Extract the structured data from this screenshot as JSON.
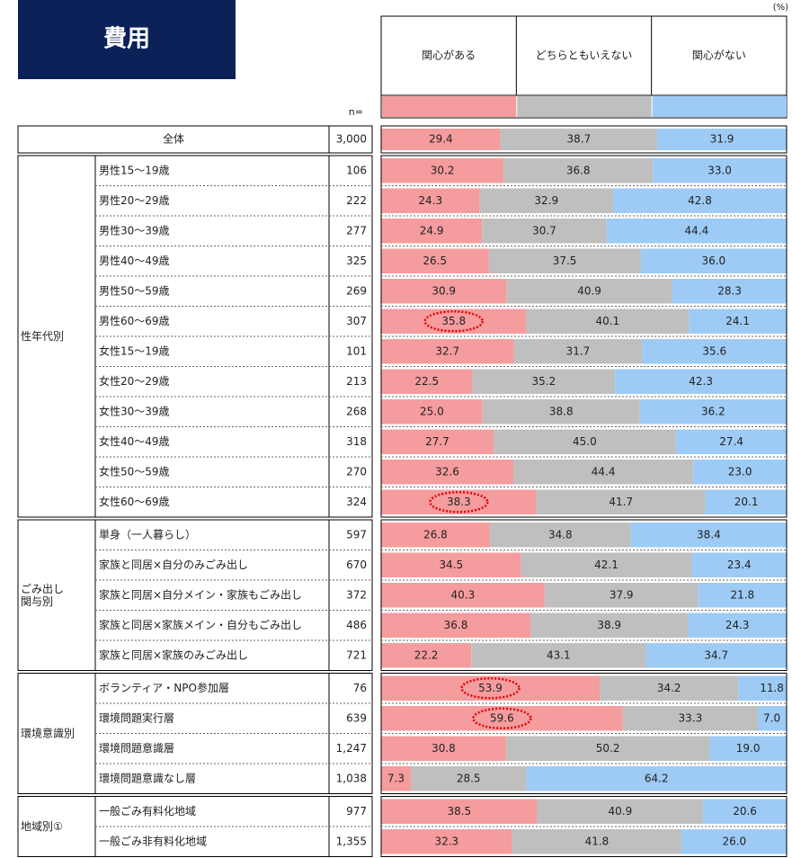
{
  "chart_data": {
    "type": "stacked_bar",
    "title": "費用",
    "unit": "(%)",
    "n_label": "n=",
    "xlim": [
      0,
      100
    ],
    "groups": [
      {
        "label": null,
        "categories": [
          "全体"
        ]
      },
      {
        "label": "性年代別",
        "categories": [
          "男性15～19歳",
          "男性20～29歳",
          "男性30～39歳",
          "男性40～49歳",
          "男性50～59歳",
          "男性60～69歳",
          "女性15～19歳",
          "女性20～29歳",
          "女性30～39歳",
          "女性40～49歳",
          "女性50～59歳",
          "女性60～69歳"
        ]
      },
      {
        "label": "ごみ出し\n関与別",
        "categories": [
          "単身（一人暮らし）",
          "家族と同居×自分のみごみ出し",
          "家族と同居×自分メイン・家族もごみ出し",
          "家族と同居×家族メイン・自分もごみ出し",
          "家族と同居×家族のみごみ出し"
        ]
      },
      {
        "label": "環境意識別",
        "categories": [
          "ボランティア・NPO参加層",
          "環境問題実行層",
          "環境問題意識層",
          "環境問題意識なし層"
        ]
      },
      {
        "label": "地域別①",
        "categories": [
          "一般ごみ有料化地域",
          "一般ごみ非有料化地域"
        ]
      }
    ],
    "n": [
      "3,000",
      "106",
      "222",
      "277",
      "325",
      "269",
      "307",
      "101",
      "213",
      "268",
      "318",
      "270",
      "324",
      "597",
      "670",
      "372",
      "486",
      "721",
      "76",
      "639",
      "1,247",
      "1,038",
      "977",
      "1,355"
    ],
    "series": [
      {
        "name": "関心がある",
        "color": "#f59c9e",
        "values": [
          29.4,
          30.2,
          24.3,
          24.9,
          26.5,
          30.9,
          35.8,
          32.7,
          22.5,
          25.0,
          27.7,
          32.6,
          38.3,
          26.8,
          34.5,
          40.3,
          36.8,
          22.2,
          53.9,
          59.6,
          30.8,
          7.3,
          38.5,
          32.3
        ],
        "value_labels": [
          "29.4",
          "30.2",
          "24.3",
          "24.9",
          "26.5",
          "30.9",
          "35.8",
          "32.7",
          "22.5",
          "25.0",
          "27.7",
          "32.6",
          "38.3",
          "26.8",
          "34.5",
          "40.3",
          "36.8",
          "22.2",
          "53.9",
          "59.6",
          "30.8",
          "7.3",
          "38.5",
          "32.3"
        ],
        "highlight": [
          6,
          12,
          18,
          19
        ]
      },
      {
        "name": "どちらともいえない",
        "color": "#bfbfbf",
        "values": [
          38.7,
          36.8,
          32.9,
          30.7,
          37.5,
          40.9,
          40.1,
          31.7,
          35.2,
          38.8,
          45.0,
          44.4,
          41.7,
          34.8,
          42.1,
          37.9,
          38.9,
          43.1,
          34.2,
          33.3,
          50.2,
          28.5,
          40.9,
          41.8
        ],
        "value_labels": [
          "38.7",
          "36.8",
          "32.9",
          "30.7",
          "37.5",
          "40.9",
          "40.1",
          "31.7",
          "35.2",
          "38.8",
          "45.0",
          "44.4",
          "41.7",
          "34.8",
          "42.1",
          "37.9",
          "38.9",
          "43.1",
          "34.2",
          "33.3",
          "50.2",
          "28.5",
          "40.9",
          "41.8"
        ]
      },
      {
        "name": "関心がない",
        "color": "#9dcbf5",
        "values": [
          31.9,
          33.0,
          42.8,
          44.4,
          36.0,
          28.3,
          24.1,
          35.6,
          42.3,
          36.2,
          27.4,
          23.0,
          20.1,
          38.4,
          23.4,
          21.8,
          24.3,
          34.7,
          11.8,
          7.0,
          19.0,
          64.2,
          20.6,
          26.0
        ],
        "value_labels": [
          "31.9",
          "33.0",
          "42.8",
          "44.4",
          "36.0",
          "28.3",
          "24.1",
          "35.6",
          "42.3",
          "36.2",
          "27.4",
          "23.0",
          "20.1",
          "38.4",
          "23.4",
          "21.8",
          "24.3",
          "34.7",
          "11.8",
          "7.0",
          "19.0",
          "64.2",
          "20.6",
          "26.0"
        ]
      }
    ]
  }
}
